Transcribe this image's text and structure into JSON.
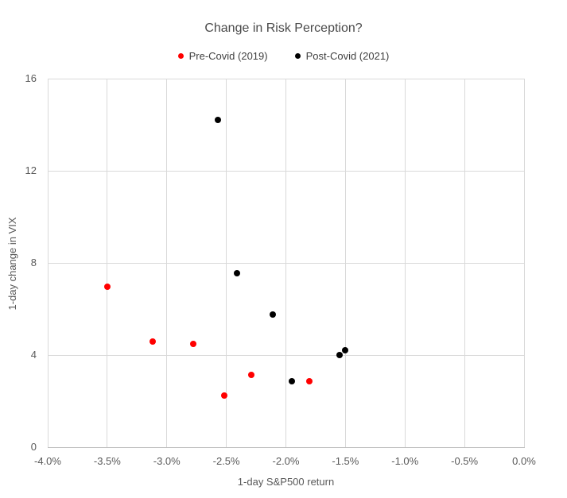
{
  "window": {
    "background": "#FFFFFF"
  },
  "chart_data": {
    "type": "scatter",
    "title": "Change in Risk Perception?",
    "xlabel": "1-day S&P500 return",
    "ylabel": "1-day change in VIX",
    "xlim": [
      -4.0,
      0.0
    ],
    "ylim": [
      0,
      16
    ],
    "grid": true,
    "legend_position": "top-center",
    "marker_size_px": 8,
    "x_ticks": [
      {
        "value": -4.0,
        "label": "-4.0%"
      },
      {
        "value": -3.5,
        "label": "-3.5%"
      },
      {
        "value": -3.0,
        "label": "-3.0%"
      },
      {
        "value": -2.5,
        "label": "-2.5%"
      },
      {
        "value": -2.0,
        "label": "-2.0%"
      },
      {
        "value": -1.5,
        "label": "-1.5%"
      },
      {
        "value": -1.0,
        "label": "-1.0%"
      },
      {
        "value": -0.5,
        "label": "-0.5%"
      },
      {
        "value": 0.0,
        "label": "0.0%"
      }
    ],
    "y_ticks": [
      {
        "value": 0,
        "label": "0"
      },
      {
        "value": 4,
        "label": "4"
      },
      {
        "value": 8,
        "label": "8"
      },
      {
        "value": 12,
        "label": "12"
      },
      {
        "value": 16,
        "label": "16"
      }
    ],
    "colors": {
      "gridline": "#D9D9D9",
      "axis_line": "#BFBFBF",
      "tick_text": "#595959",
      "title_text": "#4A4A4A",
      "legend_text": "#3F3F3F",
      "pre_covid": "#FF0000",
      "post_covid": "#000000"
    },
    "series": [
      {
        "name": "Pre-Covid (2019)",
        "color": "#FF0000",
        "points": [
          [
            -3.5,
            6.95
          ],
          [
            -3.12,
            4.6
          ],
          [
            -2.78,
            4.5
          ],
          [
            -2.52,
            2.25
          ],
          [
            -2.29,
            3.15
          ],
          [
            -1.8,
            2.85
          ]
        ]
      },
      {
        "name": "Post-Covid (2021)",
        "color": "#000000",
        "points": [
          [
            -2.57,
            14.2
          ],
          [
            -2.41,
            7.55
          ],
          [
            -2.11,
            5.75
          ],
          [
            -1.95,
            2.85
          ],
          [
            -1.55,
            4.0
          ],
          [
            -1.5,
            4.2
          ]
        ]
      }
    ]
  }
}
